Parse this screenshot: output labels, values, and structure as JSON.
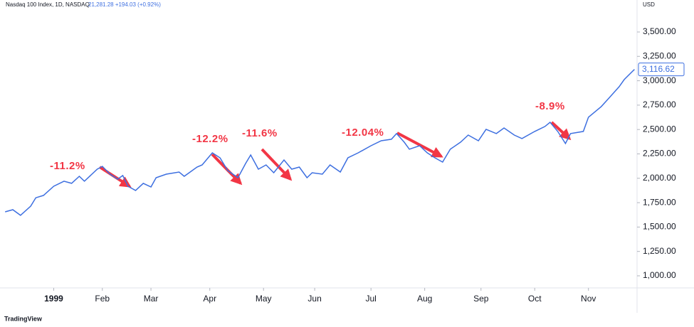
{
  "chart_data": {
    "type": "line",
    "title": "Nasdaq 100 Index, 1D, NASDAQ",
    "quote": "21,281.28 +194.03 (+0.92%)",
    "currency": "USD",
    "brand": "TradingView",
    "x": [
      -19,
      -16,
      -13,
      -9,
      -7,
      -4,
      0,
      4,
      7,
      10,
      12,
      17,
      19,
      22,
      25,
      27,
      29,
      32,
      35,
      38,
      40,
      44,
      49,
      51,
      56,
      58,
      62,
      65,
      68,
      72,
      75,
      77,
      80,
      83,
      86,
      90,
      93,
      96,
      99,
      101,
      105,
      108,
      112,
      115,
      119,
      124,
      128,
      132,
      134,
      137,
      139,
      143,
      146,
      149,
      152,
      155,
      159,
      162,
      166,
      169,
      173,
      176,
      180,
      183,
      188,
      192,
      194,
      197,
      200,
      202,
      207,
      209,
      214,
      217,
      221,
      223,
      227
    ],
    "series": [
      {
        "name": "Nasdaq 100 Index",
        "color": "#3d6fe0",
        "values": [
          1656,
          1678,
          1620,
          1714,
          1800,
          1824,
          1918,
          1970,
          1948,
          2020,
          1970,
          2093,
          2122,
          2042,
          1991,
          2028,
          1918,
          1875,
          1948,
          1911,
          2006,
          2042,
          2064,
          2020,
          2115,
          2137,
          2261,
          2210,
          2079,
          2006,
          2152,
          2239,
          2093,
          2137,
          2057,
          2188,
          2093,
          2115,
          2006,
          2057,
          2042,
          2137,
          2064,
          2210,
          2261,
          2334,
          2385,
          2400,
          2458,
          2370,
          2298,
          2334,
          2261,
          2210,
          2166,
          2298,
          2370,
          2443,
          2385,
          2502,
          2458,
          2516,
          2443,
          2407,
          2480,
          2531,
          2574,
          2480,
          2356,
          2458,
          2480,
          2626,
          2735,
          2822,
          2939,
          3012,
          3116.62
        ],
        "last_label": "3,116.62"
      }
    ],
    "xlim": [
      -21,
      228
    ],
    "ylim": [
      876,
      3755
    ],
    "xticks": [
      {
        "value": 0,
        "label": "1999"
      },
      {
        "value": 19,
        "label": "Feb"
      },
      {
        "value": 38,
        "label": "Mar"
      },
      {
        "value": 61,
        "label": "Apr"
      },
      {
        "value": 82,
        "label": "May"
      },
      {
        "value": 102,
        "label": "Jun"
      },
      {
        "value": 124,
        "label": "Jul"
      },
      {
        "value": 145,
        "label": "Aug"
      },
      {
        "value": 167,
        "label": "Sep"
      },
      {
        "value": 188,
        "label": "Oct"
      },
      {
        "value": 209,
        "label": "Nov"
      }
    ],
    "yticks": [
      {
        "value": 1000,
        "label": "1,000.00"
      },
      {
        "value": 1250,
        "label": "1,250.00"
      },
      {
        "value": 1500,
        "label": "1,500.00"
      },
      {
        "value": 1750,
        "label": "1,750.00"
      },
      {
        "value": 2000,
        "label": "2,000.00"
      },
      {
        "value": 2250,
        "label": "2,250.00"
      },
      {
        "value": 2500,
        "label": "2,500.00"
      },
      {
        "value": 2750,
        "label": "2,750.00"
      },
      {
        "value": 3000,
        "label": "3,000.00"
      },
      {
        "value": 3250,
        "label": "3,250.00"
      },
      {
        "value": 3500,
        "label": "3,500.00"
      }
    ],
    "grid": false,
    "annotations": [
      "-11.2%",
      "-12.2%",
      "-11.6%",
      "-12.04%",
      "-8.9%"
    ]
  }
}
